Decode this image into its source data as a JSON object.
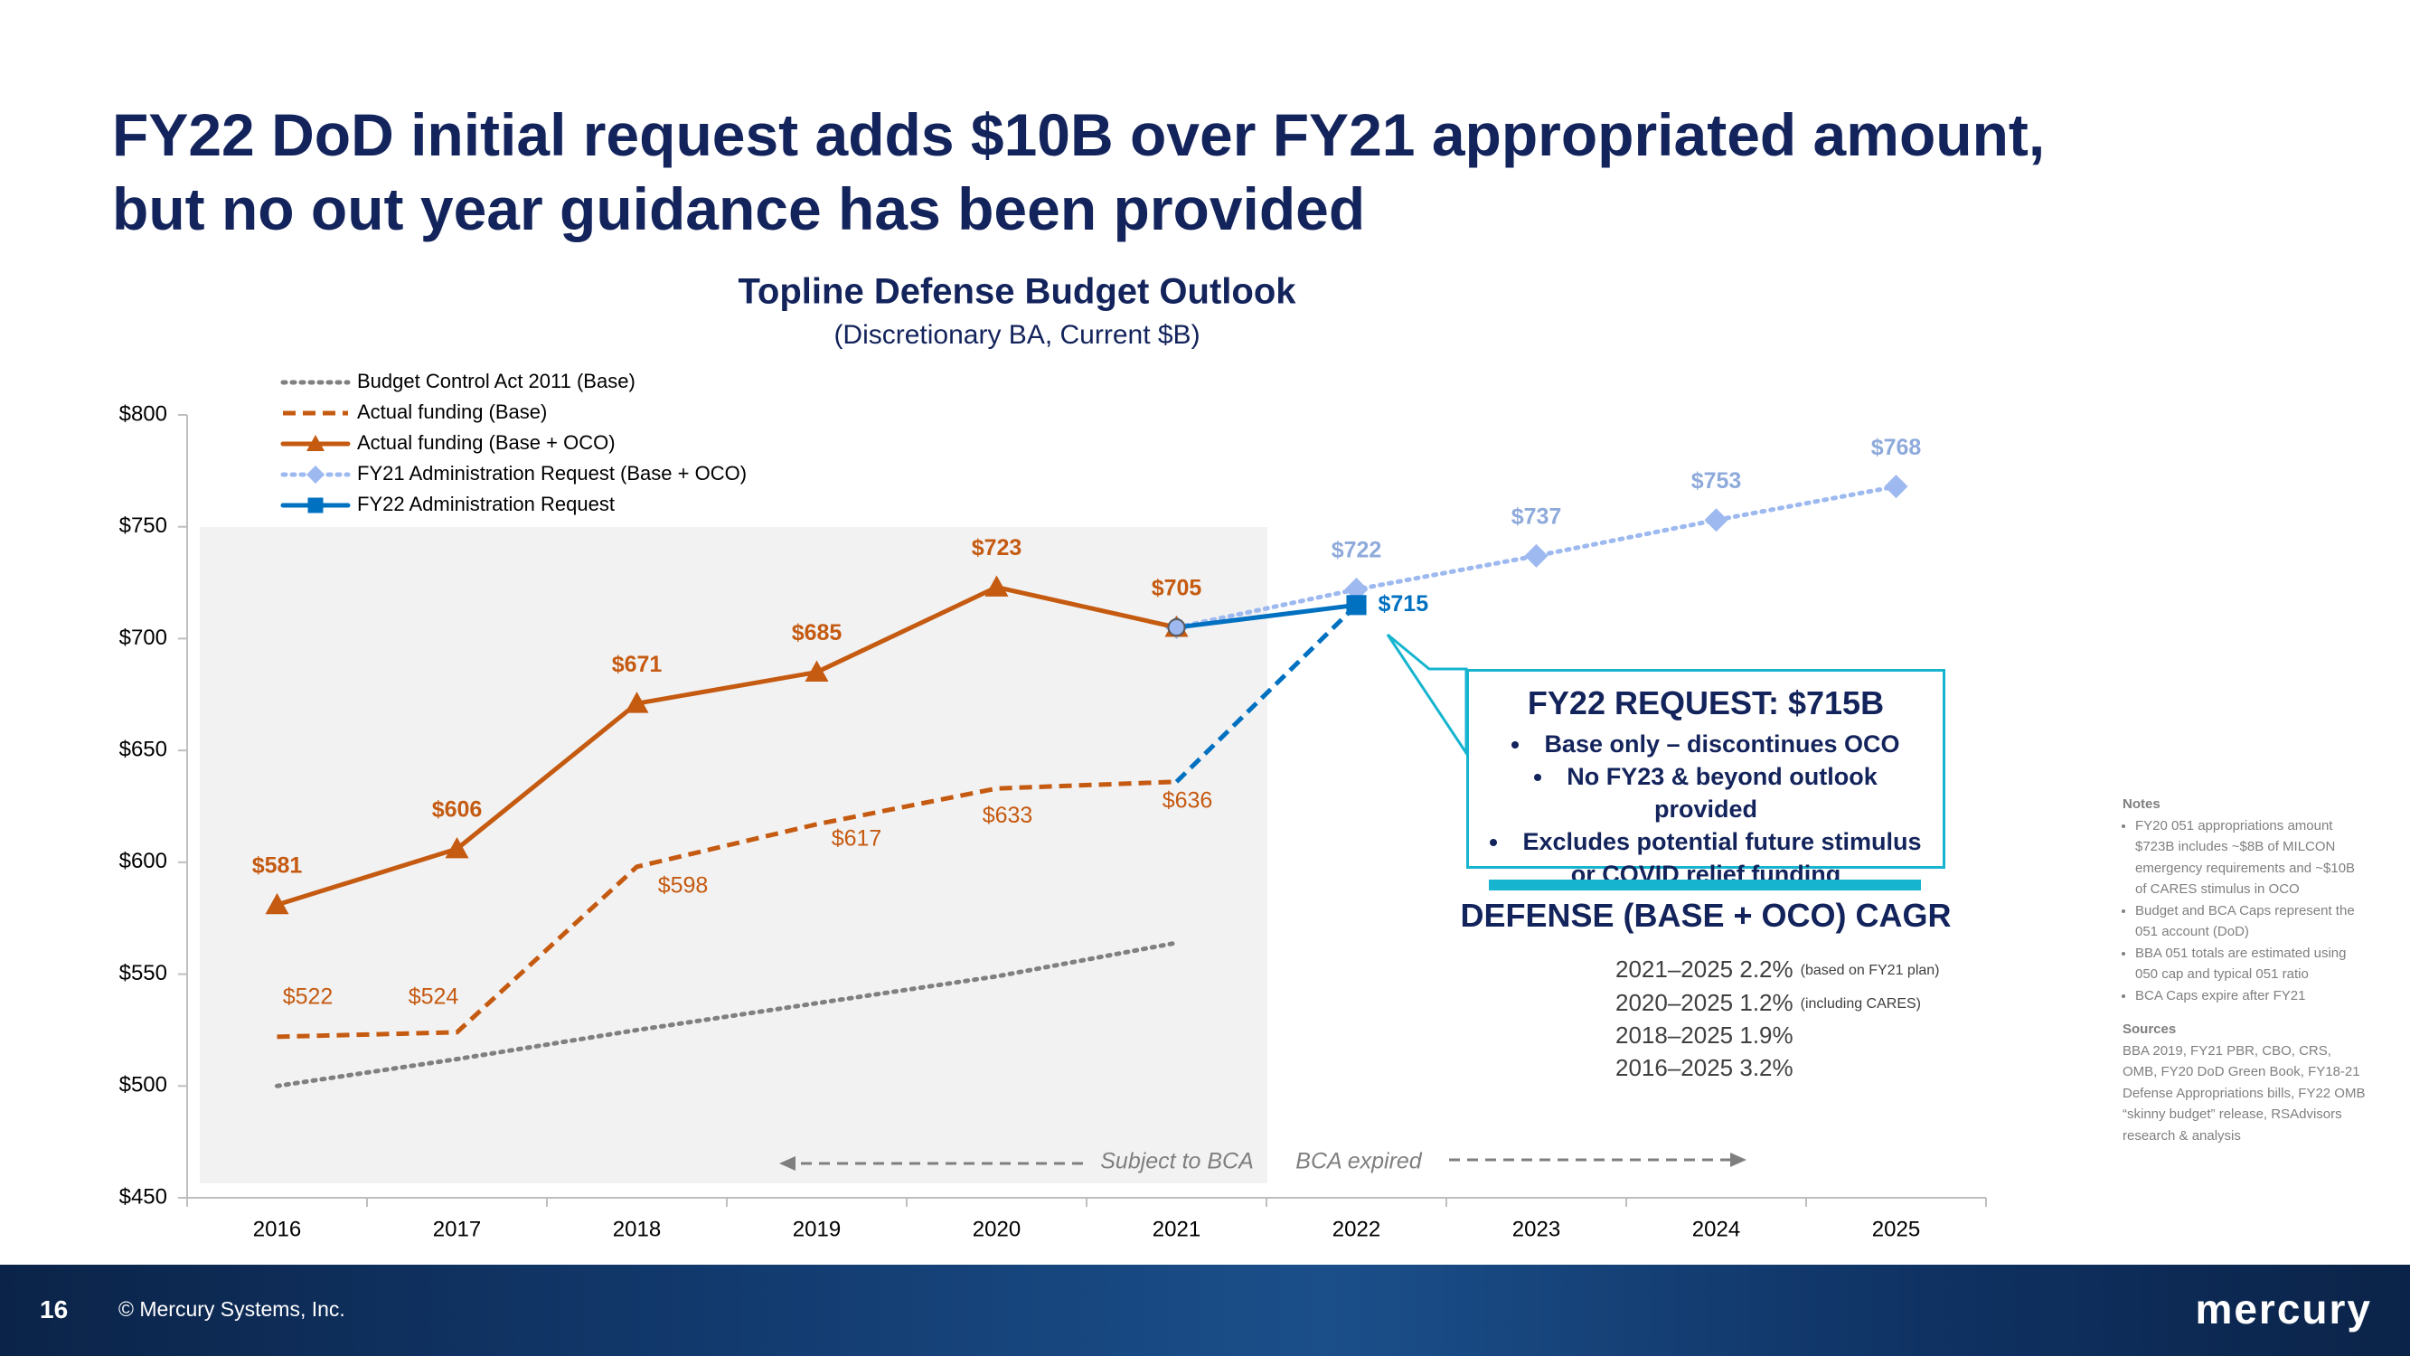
{
  "slide": {
    "title_lines": [
      "FY22 DoD initial request adds $10B over FY21 appropriated amount,",
      "but no out year guidance has been provided"
    ],
    "page_number": "16",
    "copyright": "© Mercury Systems, Inc.",
    "logo": "mercury"
  },
  "chart_data": {
    "type": "line",
    "title": "Topline Defense Budget Outlook",
    "subtitle": "(Discretionary BA, Current $B)",
    "categories": [
      "2016",
      "2017",
      "2018",
      "2019",
      "2020",
      "2021",
      "2022",
      "2023",
      "2024",
      "2025"
    ],
    "ylim": [
      450,
      800
    ],
    "yticks": [
      {
        "value": 450,
        "label": "$450"
      },
      {
        "value": 500,
        "label": "$500"
      },
      {
        "value": 550,
        "label": "$550"
      },
      {
        "value": 600,
        "label": "$600"
      },
      {
        "value": 650,
        "label": "$650"
      },
      {
        "value": 700,
        "label": "$700"
      },
      {
        "value": 750,
        "label": "$750"
      },
      {
        "value": 800,
        "label": "$800"
      }
    ],
    "grid": false,
    "legend": "top-left",
    "series": [
      {
        "name": "Budget Control Act 2011 (Base)",
        "color": "#808080",
        "dash": "dotted",
        "marker": "none",
        "values": [
          500,
          512,
          525,
          537,
          549,
          564,
          null,
          null,
          null,
          null
        ]
      },
      {
        "name": "Actual funding (Base)",
        "color": "#c55a11",
        "dash": "dashed",
        "marker": "none",
        "values": [
          522,
          524,
          598,
          617,
          633,
          636,
          null,
          null,
          null,
          null
        ],
        "value_labels": [
          "$522",
          "$524",
          "$598",
          "$617",
          "$633",
          "$636",
          null,
          null,
          null,
          null
        ]
      },
      {
        "name": "Actual funding (Base + OCO)",
        "color": "#c55a11",
        "dash": "solid",
        "marker": "triangle",
        "values": [
          581,
          606,
          671,
          685,
          723,
          705,
          null,
          null,
          null,
          null
        ],
        "value_labels": [
          "$581",
          "$606",
          "$671",
          "$685",
          "$723",
          "$705",
          null,
          null,
          null,
          null
        ]
      },
      {
        "name": "FY21 Administration Request (Base + OCO)",
        "color": "#9db9f0",
        "dash": "dotted",
        "marker": "diamond",
        "values": [
          null,
          null,
          null,
          null,
          null,
          705,
          722,
          737,
          753,
          768
        ],
        "value_labels": [
          null,
          null,
          null,
          null,
          null,
          null,
          "$722",
          "$737",
          "$753",
          "$768"
        ]
      },
      {
        "name": "FY22 Administration Request",
        "color": "#0070c0",
        "dash": "solid",
        "marker": "square",
        "values": [
          null,
          null,
          null,
          null,
          null,
          705,
          715,
          null,
          null,
          null
        ],
        "value_labels": [
          null,
          null,
          null,
          null,
          null,
          null,
          "$715",
          null,
          null,
          null
        ]
      }
    ],
    "annotations": [
      "Subject to BCA",
      "BCA expired"
    ]
  },
  "callout": {
    "title": "FY22 REQUEST: $715B",
    "bullets": [
      "Base only – discontinues OCO",
      "No FY23 & beyond outlook provided",
      "Excludes potential future stimulus or COVID relief funding"
    ]
  },
  "cagr": {
    "title": "DEFENSE (BASE + OCO) CAGR",
    "rows": [
      {
        "text": "2021–2025 2.2%",
        "note": "(based on FY21 plan)"
      },
      {
        "text": "2020–2025 1.2%",
        "note": "(including CARES)"
      },
      {
        "text": "2018–2025 1.9%"
      },
      {
        "text": "2016–2025 3.2%"
      }
    ]
  },
  "notes": {
    "title": "Notes",
    "items": [
      "FY20 051 appropriations amount $723B includes ~$8B of MILCON emergency requirements and ~$10B of CARES stimulus in OCO",
      "Budget and BCA Caps represent the 051 account (DoD)",
      "BBA 051 totals are estimated using 050 cap and typical 051 ratio",
      "BCA Caps expire after FY21"
    ],
    "sources_title": "Sources",
    "sources": "BBA 2019, FY21 PBR, CBO, CRS, OMB, FY20 DoD Green Book, FY18-21 Defense Appropriations bills, FY22 OMB “skinny budget” release, RSAdvisors research & analysis"
  }
}
